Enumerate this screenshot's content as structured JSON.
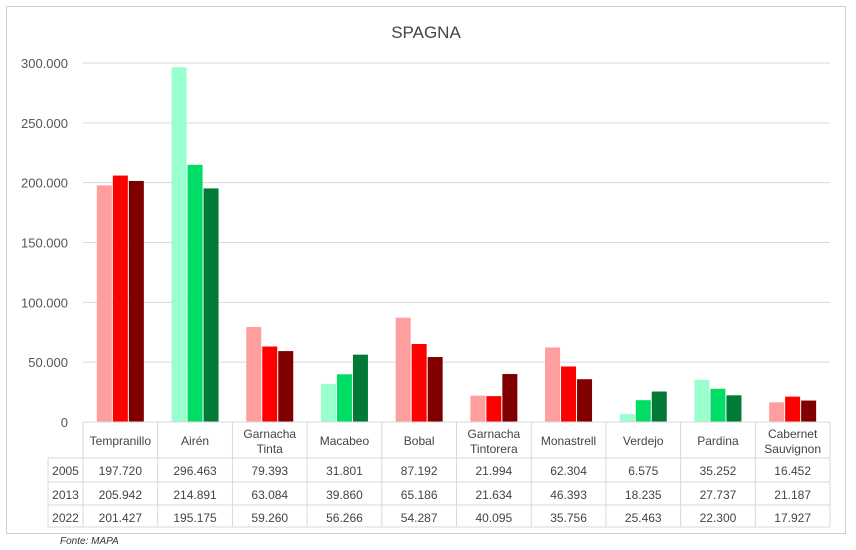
{
  "chart_data": {
    "type": "bar",
    "title": "SPAGNA",
    "categories": [
      "Tempranillo",
      "Airén",
      "Garnacha Tinta",
      "Macabeo",
      "Bobal",
      "Garnacha Tintorera",
      "Monastrell",
      "Verdejo",
      "Pardina",
      "Cabernet Sauvignon"
    ],
    "category_type": [
      "red",
      "white",
      "red",
      "white",
      "red",
      "red",
      "red",
      "white",
      "white",
      "red"
    ],
    "series": [
      {
        "name": "2005",
        "values": [
          197720,
          296463,
          79393,
          31801,
          87192,
          21994,
          62304,
          6575,
          35252,
          16452
        ],
        "table_text": [
          "197.720",
          "296.463",
          "79.393",
          "31.801",
          "87.192",
          "21.994",
          "62.304",
          "6.575",
          "35.252",
          "16.452"
        ]
      },
      {
        "name": "2013",
        "values": [
          205942,
          214891,
          63084,
          39860,
          65186,
          21634,
          46393,
          18235,
          27737,
          21187
        ],
        "table_text": [
          "205.942",
          "214.891",
          "63.084",
          "39.860",
          "65.186",
          "21.634",
          "46.393",
          "18.235",
          "27.737",
          "21.187"
        ]
      },
      {
        "name": "2022",
        "values": [
          201427,
          195175,
          59260,
          56266,
          54287,
          40095,
          35756,
          25463,
          22300,
          17927
        ],
        "table_text": [
          "201.427",
          "195.175",
          "59.260",
          "56.266",
          "54.287",
          "40.095",
          "35.756",
          "25.463",
          "22.300",
          "17.927"
        ]
      }
    ],
    "ylim": [
      0,
      300000
    ],
    "yticks": [
      0,
      50000,
      100000,
      150000,
      200000,
      250000,
      300000
    ],
    "ytick_labels": [
      "0",
      "50.000",
      "100.000",
      "150.000",
      "200.000",
      "250.000",
      "300.000"
    ],
    "grid": true,
    "legend": "data table below chart",
    "colors": {
      "red": [
        "#ff9e9e",
        "#ff0000",
        "#800000"
      ],
      "white": [
        "#99ffcc",
        "#00dd66",
        "#007a36"
      ]
    }
  },
  "source": "Fonte: MAPA"
}
